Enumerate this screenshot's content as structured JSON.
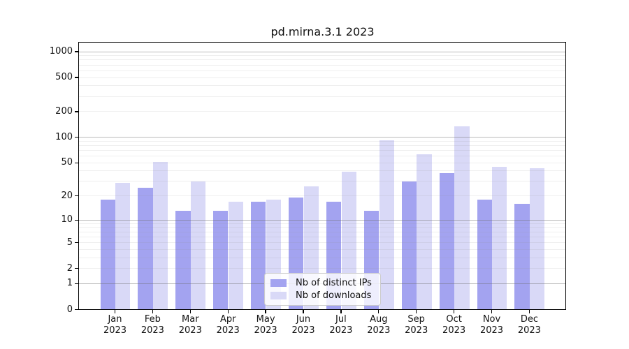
{
  "chart_data": {
    "type": "bar",
    "title": "pd.mirna.3.1 2023",
    "categories": [
      "Jan",
      "Feb",
      "Mar",
      "Apr",
      "May",
      "Jun",
      "Jul",
      "Aug",
      "Sep",
      "Oct",
      "Nov",
      "Dec"
    ],
    "category_year": "2023",
    "series": [
      {
        "name": "Nb of distinct IPs",
        "color": "#a3a3f0",
        "values": [
          18,
          25,
          13,
          13,
          17,
          19,
          17,
          13,
          30,
          38,
          18,
          16
        ]
      },
      {
        "name": "Nb of downloads",
        "color": "#d9d9f7",
        "values": [
          29,
          51,
          30,
          17,
          18,
          26,
          39,
          92,
          63,
          134,
          45,
          43
        ]
      }
    ],
    "yscale": "log1p",
    "ylim": [
      0,
      1000
    ],
    "yticks": [
      0,
      1,
      2,
      5,
      10,
      20,
      50,
      100,
      200,
      500,
      1000
    ],
    "grid": "on",
    "legend_position": "bottom-center-inside",
    "frame_color": "#000000",
    "major_grid_values": [
      1,
      10,
      100,
      1000
    ]
  }
}
